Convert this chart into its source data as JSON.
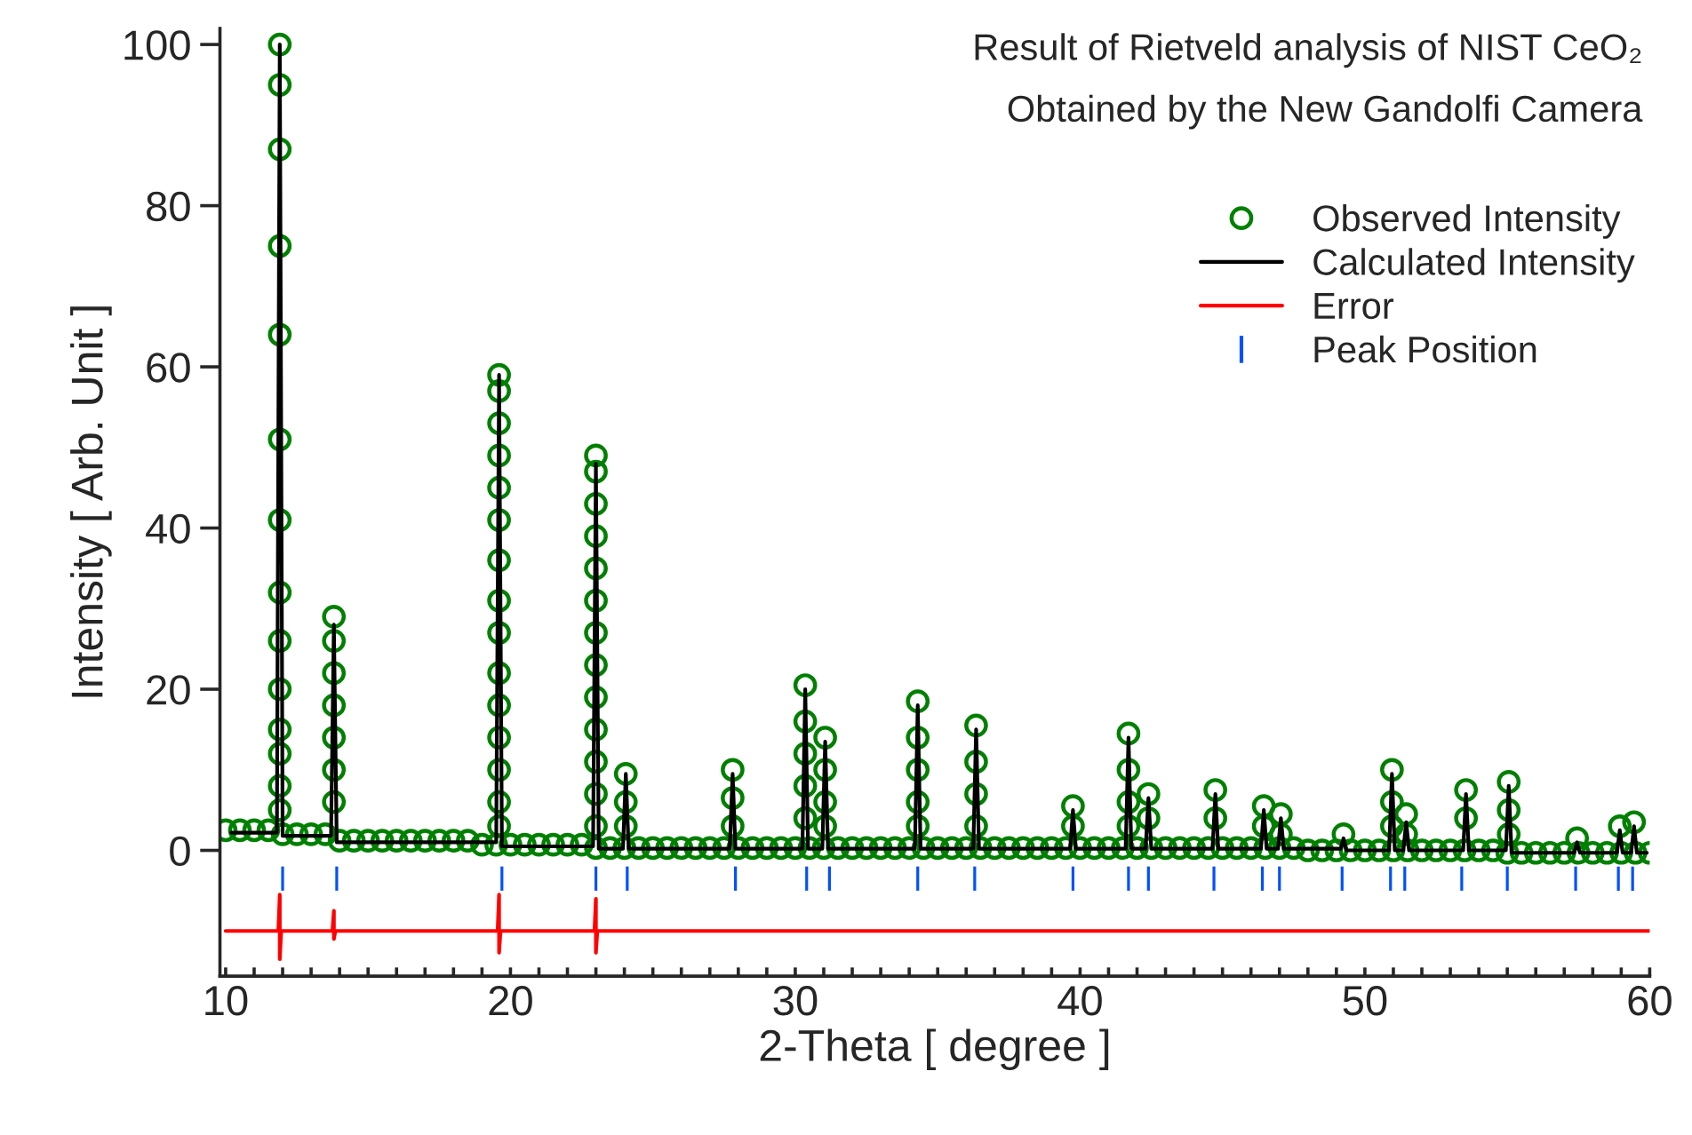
{
  "chart_data": {
    "type": "scatter",
    "title": "Result of Rietveld analysis of NIST CeO₂",
    "subtitle": "Obtained by the New Gandolfi Camera",
    "xlabel": "2-Theta [ degree ]",
    "ylabel": "Intensity [ Arb. Unit ]",
    "xlim": [
      9.8,
      60
    ],
    "ylim": [
      -15.6,
      102
    ],
    "xticks": [
      10,
      {
        "value": 11,
        "label": null
      },
      {
        "value": 12,
        "label": null
      },
      {
        "value": 13,
        "label": null
      },
      {
        "value": 14,
        "label": null
      },
      {
        "value": 15,
        "label": null
      },
      {
        "value": 16,
        "label": null
      },
      {
        "value": 17,
        "label": null
      },
      {
        "value": 18,
        "label": null
      },
      {
        "value": 19,
        "label": null
      },
      20,
      {
        "value": 21,
        "label": null
      },
      {
        "value": 22,
        "label": null
      },
      {
        "value": 23,
        "label": null
      },
      {
        "value": 24,
        "label": null
      },
      {
        "value": 25,
        "label": null
      },
      {
        "value": 26,
        "label": null
      },
      {
        "value": 27,
        "label": null
      },
      {
        "value": 28,
        "label": null
      },
      {
        "value": 29,
        "label": null
      },
      30,
      {
        "value": 31,
        "label": null
      },
      {
        "value": 32,
        "label": null
      },
      {
        "value": 33,
        "label": null
      },
      {
        "value": 34,
        "label": null
      },
      {
        "value": 35,
        "label": null
      },
      {
        "value": 36,
        "label": null
      },
      {
        "value": 37,
        "label": null
      },
      {
        "value": 38,
        "label": null
      },
      {
        "value": 39,
        "label": null
      },
      40,
      {
        "value": 41,
        "label": null
      },
      {
        "value": 42,
        "label": null
      },
      {
        "value": 43,
        "label": null
      },
      {
        "value": 44,
        "label": null
      },
      {
        "value": 45,
        "label": null
      },
      {
        "value": 46,
        "label": null
      },
      {
        "value": 47,
        "label": null
      },
      {
        "value": 48,
        "label": null
      },
      {
        "value": 49,
        "label": null
      },
      50,
      {
        "value": 51,
        "label": null
      },
      {
        "value": 52,
        "label": null
      },
      {
        "value": 53,
        "label": null
      },
      {
        "value": 54,
        "label": null
      },
      {
        "value": 55,
        "label": null
      },
      {
        "value": 56,
        "label": null
      },
      {
        "value": 57,
        "label": null
      },
      {
        "value": 58,
        "label": null
      },
      {
        "value": 59,
        "label": null
      },
      60
    ],
    "yticks": [
      0,
      20,
      40,
      60,
      80,
      100
    ],
    "grid": false,
    "legend": "top right",
    "series": [
      {
        "name": "Observed Intensity",
        "marker": "circle",
        "color": "#008000",
        "x": [
          10,
          10.5,
          11,
          11.5,
          12,
          12.5,
          13,
          13.5,
          14,
          14.5,
          15,
          15.5,
          16,
          16.5,
          17,
          17.5,
          18,
          18.5,
          19,
          19.5,
          20,
          20.5,
          21,
          21.5,
          22,
          22.5,
          23,
          23.5,
          24,
          24.5,
          25,
          25.5,
          26,
          26.5,
          27,
          27.5,
          28,
          28.5,
          29,
          29.5,
          30,
          30.5,
          31,
          31.5,
          32,
          32.5,
          33,
          33.5,
          34,
          34.5,
          35,
          35.5,
          36,
          36.5,
          37,
          37.5,
          38,
          38.5,
          39,
          39.5,
          40,
          40.5,
          41,
          41.5,
          42,
          42.5,
          43,
          43.5,
          44,
          44.5,
          45,
          45.5,
          46,
          46.5,
          47,
          47.5,
          48,
          48.5,
          49,
          49.5,
          50,
          50.5,
          51,
          51.5,
          52,
          52.5,
          53,
          53.5,
          54,
          54.5,
          55,
          55.5,
          56,
          56.5,
          57,
          57.5,
          58,
          58.5,
          59,
          59.5,
          60,
          11.9,
          11.9,
          11.9,
          11.9,
          11.9,
          11.9,
          11.9,
          11.9,
          11.9,
          11.9,
          11.9,
          11.9,
          11.9,
          11.9,
          13.8,
          13.8,
          13.8,
          13.8,
          13.8,
          13.8,
          13.8,
          19.6,
          19.6,
          19.6,
          19.6,
          19.6,
          19.6,
          19.6,
          19.6,
          19.6,
          19.6,
          19.6,
          19.6,
          19.6,
          19.6,
          19.6,
          23.0,
          23.0,
          23.0,
          23.0,
          23.0,
          23.0,
          23.0,
          23.0,
          23.0,
          23.0,
          23.0,
          23.0,
          23.0,
          24.05,
          24.05,
          24.05,
          27.8,
          27.8,
          27.8,
          30.35,
          30.35,
          30.35,
          30.35,
          30.35,
          31.05,
          31.05,
          31.05,
          31.05,
          34.3,
          34.3,
          34.3,
          34.3,
          34.3,
          36.35,
          36.35,
          36.35,
          36.35,
          39.75,
          39.75,
          41.7,
          41.7,
          41.7,
          41.7,
          42.4,
          42.4,
          44.75,
          44.75,
          46.45,
          46.45,
          47.05,
          47.05,
          49.25,
          50.95,
          50.95,
          50.95,
          51.45,
          51.45,
          53.55,
          53.55,
          55.05,
          55.05,
          55.05,
          57.45,
          58.95,
          59.45
        ],
        "values": [
          2.5,
          2.5,
          2.5,
          2.5,
          2,
          2,
          2,
          2,
          1.2,
          1.2,
          1.2,
          1.2,
          1.2,
          1.2,
          1.2,
          1.2,
          1.2,
          1.2,
          0.7,
          0.7,
          0.7,
          0.7,
          0.7,
          0.7,
          0.7,
          0.7,
          0.3,
          0.3,
          0.3,
          0.3,
          0.3,
          0.3,
          0.3,
          0.3,
          0.3,
          0.3,
          0.3,
          0.3,
          0.3,
          0.3,
          0.3,
          0.3,
          0.3,
          0.3,
          0.3,
          0.3,
          0.3,
          0.3,
          0.3,
          0.3,
          0.3,
          0.3,
          0.3,
          0.3,
          0.3,
          0.3,
          0.3,
          0.3,
          0.3,
          0.3,
          0.3,
          0.3,
          0.3,
          0.3,
          0.3,
          0.3,
          0.3,
          0.3,
          0.3,
          0.3,
          0.3,
          0.3,
          0.3,
          0.3,
          0.3,
          0.3,
          0,
          0,
          0,
          0,
          0,
          0,
          0,
          0,
          0,
          0,
          0,
          0,
          0,
          0,
          -0.3,
          -0.3,
          -0.3,
          -0.3,
          -0.3,
          -0.3,
          -0.3,
          -0.3,
          -0.3,
          -0.3,
          -0.3,
          100,
          95,
          87,
          75,
          64,
          51,
          41,
          32,
          26,
          20,
          15,
          12,
          8,
          5,
          29,
          26,
          22,
          18,
          14,
          10,
          6,
          59,
          57,
          53,
          49,
          45,
          41,
          36,
          31,
          27,
          22,
          18,
          14,
          10,
          6,
          3,
          49,
          47,
          43,
          39,
          35,
          31,
          27,
          23,
          19,
          15,
          11,
          7,
          3,
          9.5,
          6,
          3,
          10,
          6.5,
          3,
          20.5,
          16,
          12,
          8,
          4,
          14,
          10,
          6,
          3,
          18.5,
          14,
          10,
          6,
          3,
          15.5,
          11,
          7,
          3,
          5.5,
          3,
          14.5,
          10,
          6,
          3,
          7,
          4,
          7.5,
          4,
          5.5,
          3,
          4.5,
          2,
          2,
          10,
          6,
          3,
          4.5,
          2,
          7.5,
          4,
          8.5,
          5,
          2,
          1.5,
          3,
          3.5
        ]
      },
      {
        "name": "Calculated Intensity",
        "type": "line",
        "color": "#000000",
        "x": [
          10.2,
          11.8,
          11.9,
          12.0,
          13.7,
          13.8,
          13.9,
          19.5,
          19.6,
          19.7,
          22.9,
          23.0,
          23.1,
          23.95,
          24.05,
          24.15,
          27.7,
          27.8,
          27.9,
          30.25,
          30.35,
          30.45,
          30.95,
          31.05,
          31.15,
          34.2,
          34.3,
          34.4,
          36.25,
          36.35,
          36.45,
          39.65,
          39.75,
          39.85,
          41.6,
          41.7,
          41.8,
          42.3,
          42.4,
          42.5,
          44.65,
          44.75,
          44.85,
          46.35,
          46.45,
          46.55,
          46.95,
          47.05,
          47.15,
          49.15,
          49.25,
          49.35,
          50.85,
          50.95,
          51.05,
          51.35,
          51.45,
          51.55,
          53.45,
          53.55,
          53.65,
          54.95,
          55.05,
          55.15,
          57.35,
          57.45,
          57.55,
          58.85,
          58.95,
          59.05,
          59.35,
          59.45,
          59.55,
          59.9
        ],
        "values": [
          2.2,
          2.2,
          100,
          1.8,
          1.8,
          28,
          1.0,
          1.0,
          59,
          0.5,
          0.5,
          48,
          0.2,
          0.2,
          9.5,
          0.2,
          0.2,
          9.5,
          0.2,
          0.2,
          20,
          0.2,
          0.2,
          13.5,
          0.2,
          0.2,
          18,
          0.2,
          0.2,
          15,
          0.2,
          0.2,
          5,
          0.2,
          0.2,
          14,
          0.2,
          0.2,
          6.5,
          0.2,
          0.2,
          7,
          0.2,
          0.2,
          5,
          0.2,
          0.2,
          4,
          0.2,
          0.2,
          1.5,
          0,
          0,
          9.5,
          0,
          0,
          3.5,
          0,
          0,
          7,
          0,
          0,
          8,
          -0.3,
          -0.3,
          1,
          -0.3,
          -0.3,
          2.5,
          -0.3,
          -0.3,
          3,
          -0.3,
          -0.3
        ]
      },
      {
        "name": "Error",
        "type": "line",
        "color": "#ff0000",
        "x": [
          10,
          11.85,
          11.9,
          11.9,
          11.95,
          13.75,
          13.8,
          13.8,
          13.85,
          19.55,
          19.6,
          19.6,
          19.65,
          22.95,
          23.0,
          23.0,
          23.05,
          60
        ],
        "values": [
          -10,
          -10,
          -5.5,
          -13.5,
          -10,
          -10,
          -7.5,
          -11,
          -10,
          -10,
          -5.5,
          -12.7,
          -10,
          -10,
          -6,
          -12.7,
          -10,
          -10
        ]
      },
      {
        "name": "Peak Position",
        "type": "bar",
        "color": "#0050ff",
        "base": [
          -5,
          -5,
          -5,
          -5,
          -5,
          -5,
          -5,
          -5,
          -5,
          -5,
          -5,
          -5,
          -5,
          -5,
          -5,
          -5,
          -5,
          -5,
          -5,
          -5,
          -5,
          -5,
          -5,
          -5
        ],
        "x": [
          12.0,
          13.9,
          19.7,
          23.0,
          24.1,
          27.9,
          30.4,
          31.2,
          34.3,
          36.3,
          39.75,
          41.7,
          42.4,
          44.7,
          46.4,
          47.0,
          49.2,
          50.9,
          51.4,
          53.4,
          55.0,
          57.4,
          58.9,
          59.4
        ],
        "values": [
          3,
          3,
          3,
          3,
          3,
          3,
          3,
          3,
          3,
          3,
          3,
          3,
          3,
          3,
          3,
          3,
          3,
          3,
          3,
          3,
          3,
          3,
          3,
          3
        ]
      }
    ]
  }
}
